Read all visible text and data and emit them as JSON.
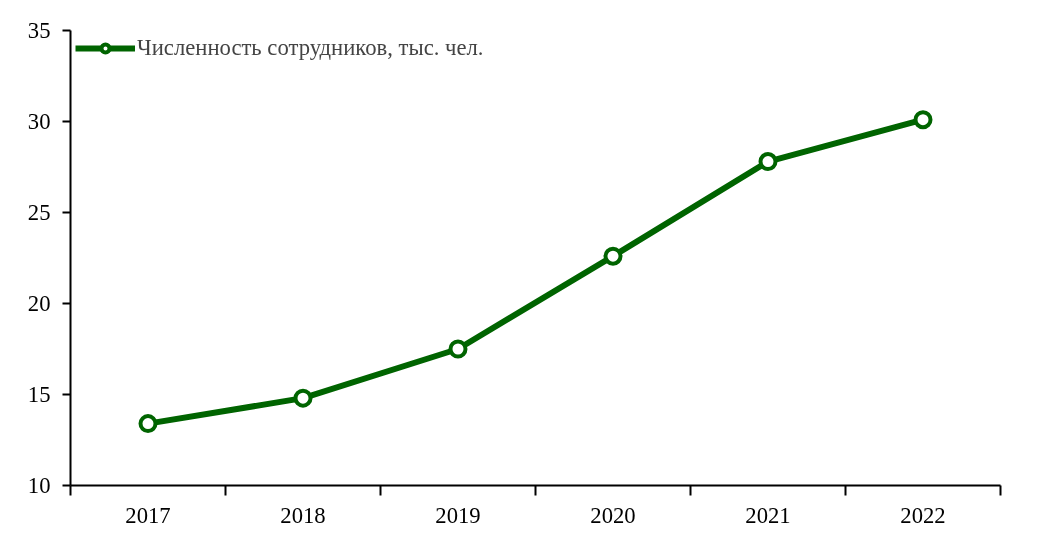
{
  "chart_data": {
    "type": "line",
    "categories": [
      "2017",
      "2018",
      "2019",
      "2020",
      "2021",
      "2022"
    ],
    "series": [
      {
        "name": "Численность сотрудников, тыс. чел.",
        "color": "#006400",
        "values": [
          13.4,
          14.8,
          17.5,
          22.6,
          27.8,
          30.1
        ]
      }
    ],
    "ylim": [
      10,
      35
    ],
    "yticks": [
      10,
      15,
      20,
      25,
      30,
      35
    ],
    "grid": false,
    "legend": "top left",
    "marker": "circle",
    "line_style": "solid"
  }
}
